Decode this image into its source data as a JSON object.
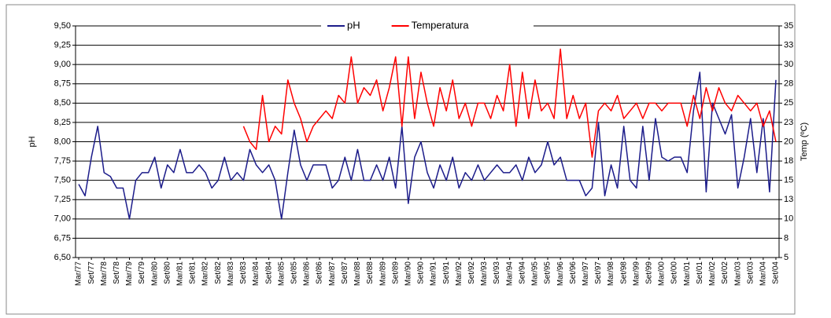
{
  "chart_data": {
    "type": "line",
    "categories": [
      "Mar/77",
      null,
      "Set/77",
      null,
      "Mar/78",
      null,
      "Set/78",
      null,
      "Mar/79",
      null,
      "Set/79",
      null,
      "Mar/80",
      null,
      "Set/80",
      null,
      "Mar/81",
      null,
      "Set/81",
      null,
      "Mar/82",
      null,
      "Set/82",
      null,
      "Mar/83",
      null,
      "Set/83",
      null,
      "Mar/84",
      null,
      "Set/84",
      null,
      "Mar/85",
      null,
      "Set/85",
      null,
      "Mar/86",
      null,
      "Set/86",
      null,
      "Mar/87",
      null,
      "Set/87",
      null,
      "Mar/88",
      null,
      "Set/88",
      null,
      "Mar/89",
      null,
      "Set/89",
      null,
      "Mar/90",
      null,
      "Set/90",
      null,
      "Mar/91",
      null,
      "Set/91",
      null,
      "Mar/92",
      null,
      "Set/92",
      null,
      "Mar/93",
      null,
      "Set/93",
      null,
      "Mar/94",
      null,
      "Set/94",
      null,
      "Mar/95",
      null,
      "Set/95",
      null,
      "Mar/96",
      null,
      "Set/96",
      null,
      "Mar/97",
      null,
      "Set/97",
      null,
      "Mar/98",
      null,
      "Set/98",
      null,
      "Mar/99",
      null,
      "Set/99",
      null,
      "Mar/00",
      null,
      "Set/00",
      null,
      "Mar/01",
      null,
      "Set/01",
      null,
      "Mar/02",
      null,
      "Set/02",
      null,
      "Mar/03",
      null,
      "Set/03",
      null,
      "Mar/04",
      null,
      "Set/04"
    ],
    "series": [
      {
        "name": "pH",
        "color": "#1c1c8a",
        "values": [
          7.45,
          7.3,
          7.8,
          8.2,
          7.6,
          7.55,
          7.4,
          7.4,
          7.0,
          7.5,
          7.6,
          7.6,
          7.8,
          7.4,
          7.7,
          7.6,
          7.9,
          7.6,
          7.6,
          7.7,
          7.6,
          7.4,
          7.5,
          7.8,
          7.5,
          7.6,
          7.5,
          7.9,
          7.7,
          7.6,
          7.7,
          7.5,
          7.0,
          7.6,
          8.15,
          7.7,
          7.5,
          7.7,
          7.7,
          7.7,
          7.4,
          7.5,
          7.8,
          7.5,
          7.9,
          7.5,
          7.5,
          7.7,
          7.5,
          7.8,
          7.4,
          8.2,
          7.2,
          7.8,
          8.0,
          7.6,
          7.4,
          7.7,
          7.5,
          7.8,
          7.4,
          7.6,
          7.5,
          7.7,
          7.5,
          7.6,
          7.7,
          7.6,
          7.6,
          7.7,
          7.5,
          7.8,
          7.6,
          7.7,
          8.0,
          7.7,
          7.8,
          7.5,
          7.5,
          7.5,
          7.3,
          7.4,
          8.25,
          7.3,
          7.7,
          7.4,
          8.2,
          7.5,
          7.4,
          8.2,
          7.5,
          8.3,
          7.8,
          7.75,
          7.8,
          7.8,
          7.6,
          8.4,
          8.9,
          7.35,
          8.5,
          8.3,
          8.1,
          8.35,
          7.4,
          7.8,
          8.3,
          7.6,
          8.3,
          7.35,
          8.8
        ]
      },
      {
        "name": "Temperatura",
        "color": "#ff0000",
        "axis": "y2",
        "values": [
          null,
          null,
          null,
          null,
          null,
          null,
          null,
          null,
          null,
          null,
          null,
          null,
          null,
          null,
          null,
          null,
          null,
          null,
          null,
          null,
          null,
          null,
          null,
          null,
          null,
          null,
          22,
          20,
          19,
          26,
          20,
          22,
          21,
          28,
          25,
          23,
          20,
          22,
          23,
          24,
          23,
          26,
          25,
          31,
          25,
          27,
          26,
          28,
          24,
          27,
          31,
          22,
          31,
          23,
          29,
          25,
          22,
          27,
          24,
          28,
          23,
          25,
          22,
          25,
          25,
          23,
          26,
          24,
          30,
          22,
          29,
          23,
          28,
          24,
          25,
          23,
          32,
          23,
          26,
          23,
          25,
          18,
          24,
          25,
          24,
          26,
          23,
          24,
          25,
          23,
          25,
          25,
          24,
          25,
          25,
          25,
          22,
          26,
          23,
          27,
          24,
          27,
          25,
          24,
          26,
          25,
          24,
          25,
          22,
          24,
          20
        ]
      }
    ],
    "ylabel": "pH",
    "y2label": "Temp (ºC)",
    "ylim": [
      6.5,
      9.5
    ],
    "yticks": [
      {
        "value": 6.5,
        "label": "6,50"
      },
      {
        "value": 6.75,
        "label": "6,75"
      },
      {
        "value": 7,
        "label": "7,00"
      },
      {
        "value": 7.25,
        "label": "7,25"
      },
      {
        "value": 7.5,
        "label": "7,50"
      },
      {
        "value": 7.75,
        "label": "7,75"
      },
      {
        "value": 8,
        "label": "8,00"
      },
      {
        "value": 8.25,
        "label": "8,25"
      },
      {
        "value": 8.5,
        "label": "8,50"
      },
      {
        "value": 8.75,
        "label": "8,75"
      },
      {
        "value": 9,
        "label": "9,00"
      },
      {
        "value": 9.25,
        "label": "9,25"
      },
      {
        "value": 9.5,
        "label": "9,50"
      }
    ],
    "y2lim": [
      5,
      35
    ],
    "y2ticks": [
      5,
      {
        "value": 7.5,
        "label": "8"
      },
      10,
      {
        "value": 12.5,
        "label": "13"
      },
      15,
      {
        "value": 17.5,
        "label": "18"
      },
      20,
      {
        "value": 22.5,
        "label": "23"
      },
      25,
      {
        "value": 27.5,
        "label": "28"
      },
      30,
      {
        "value": 32.5,
        "label": "33"
      },
      35
    ],
    "grid": true,
    "legend": "top"
  }
}
